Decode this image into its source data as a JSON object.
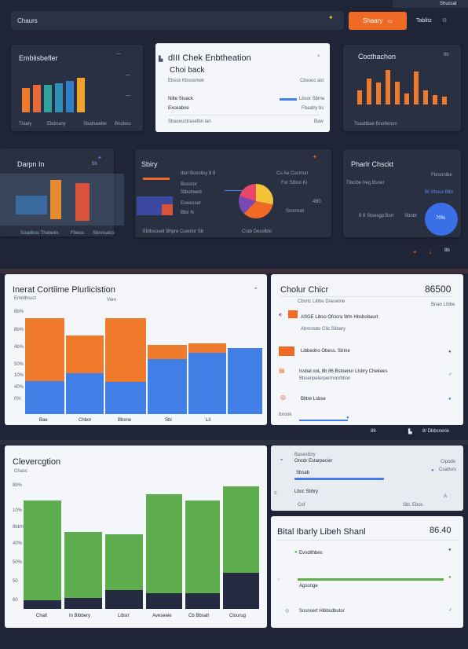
{
  "topbar": {
    "title": "Chaurs",
    "share_label": "Shaary",
    "right_label": "Tablitz",
    "corner_label": "Shussat"
  },
  "cards": {
    "c1": {
      "title": "Emblisbefler",
      "bar_labels": [
        "Ttaaly",
        "Ebdnany",
        "Sbalnawbe",
        "Bnoboo"
      ],
      "bars": [
        0.55,
        0.62,
        0.62,
        0.66,
        0.72,
        0.78
      ]
    },
    "c2": {
      "title": "dIII Chek Enbtheation",
      "subtitle": "Choi back",
      "line1": "Ebsck Kbsosmek",
      "line1r": "Cbsouc ast",
      "row1": "Nilte Stuack",
      "row1r": "Lbsor Sbme",
      "row2": "Exceabne",
      "row2r": "Fbaatry bs",
      "footer": "Sbaceuctrasefbn lan",
      "footer_r": "Baw"
    },
    "c3": {
      "title": "Cocthachon",
      "badge": "8b",
      "bars": [
        0.5,
        0.82,
        0.68,
        0.78,
        0.62,
        0.45,
        0.75,
        0.45,
        0.3,
        0.25
      ],
      "footer": "Tsaattbae Bnoltenon"
    },
    "c4": {
      "title": "Darpn In",
      "badge": "5b",
      "footer1": "Soadbou Thebeks",
      "footer2": "Fbeou",
      "footer3": "Sbnnsatcs"
    },
    "c5": {
      "title": "Sbiry",
      "l1": "Ibor Bosnlisy 8 8",
      "l2": "Bosoror",
      "l3": "Stbubwed",
      "l4": "Eswesser",
      "l5": "Blbr N",
      "r1": "Cu Ae Cocmun",
      "r2": "For Stbsn Ki",
      "r3": "4B0",
      "r4": "Sosnnsb",
      "footer": "Eblbscuelt Bhpre Cueolor Sb",
      "footer_r": "Crab Desolblo"
    },
    "c6": {
      "title": "Pharlr Chsckt",
      "l1": "Tibcibe Ireg Bsner",
      "r1": "Fbrsnnibe",
      "r2": "Bt Vbusx Blbt",
      "l2": "8 8 Stoesgp Bsrt",
      "r3": "Sbnbt",
      "pie_val": "70%"
    },
    "bar_chart": {
      "title": "Inerat Cortiime Plurlicistion",
      "subtitle": "Emidbsuct",
      "legend": "Vieo",
      "yticks": [
        "8b%",
        "8b%",
        "4b%",
        "50%",
        "10%",
        "40%",
        "0%"
      ],
      "categories": [
        "Bae",
        "Chbor",
        "Bbsne",
        "Sbi",
        "Lil"
      ]
    },
    "list1": {
      "title": "Cholur Chicr",
      "value": "86500",
      "sub": "Cbsrtc Libbe Dseseine",
      "sub_r": "Bnao Libbe",
      "i1": "ASGE Libso Ofcicra Wm Hbsbobaurt",
      "i1b": "Abmnsbo Clic Slibary",
      "i2": "Libbedno Obess. Strine",
      "i3": "Issbal ooL 8b 86 Bstoenur Llsbry Chekees",
      "i3b": "Bbsenpelorpermsnrbtion",
      "i4": "Blttre Lsbse",
      "foot": "lbrook"
    },
    "status": {
      "left": "86",
      "right": "8/ Dbbsnerie"
    },
    "green_chart": {
      "title": "Clevercgtion",
      "subtitle": "Chasc",
      "yticks": [
        "8b%",
        "10%",
        "8bb%",
        "40%",
        "50%",
        "50",
        "60"
      ],
      "categories": [
        "Chalt",
        "In Bibbery",
        "Libsrr",
        "Aveseeie",
        "Cb Bbsalt",
        "Clourug"
      ]
    },
    "mini": {
      "l1": "Basestbry",
      "l2": "Oncdr Estarpecier",
      "l3": "Sbsab",
      "r1": "Cipode",
      "r2": "Csabsrs",
      "l4": "Lbsc Sbhry",
      "f1": "Cof",
      "f2": "Sbl. Ebos",
      "f3": "A"
    },
    "list2": {
      "title": "Bital Ibarly Libeh Shanl",
      "value": "86.40",
      "i1": "Evndithbes",
      "i2": "Agsonge",
      "i3": "Sosnsert Hibbsdbutor"
    }
  },
  "colors": {
    "accent": "#ee6a25",
    "blue": "#3f7fe6",
    "green": "#5ead4e",
    "bg": "#1f2536"
  }
}
